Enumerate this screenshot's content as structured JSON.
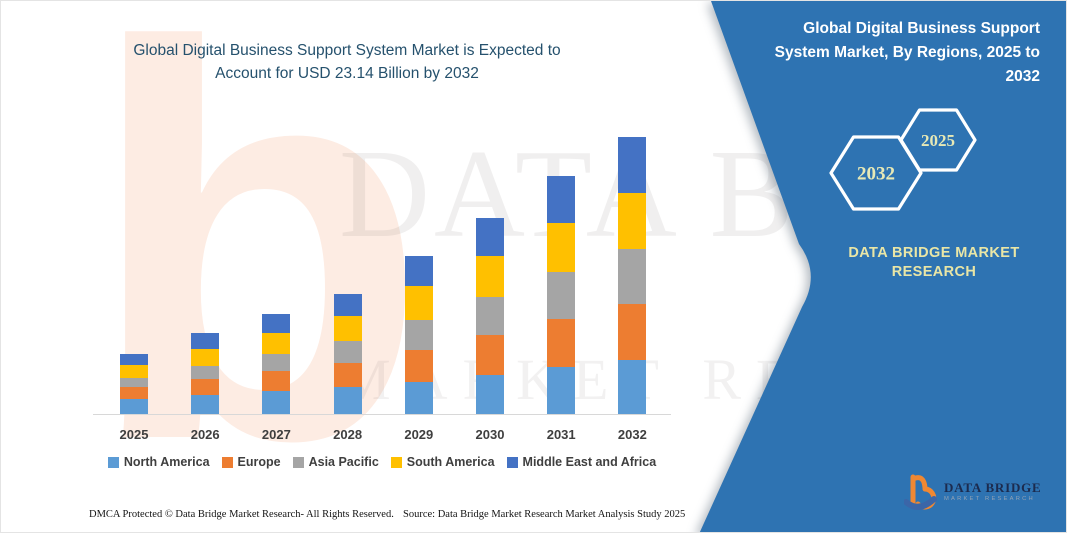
{
  "header": {
    "title_line1": "Global Digital Business Support System Market is Expected to",
    "title_line2": "Account for USD 23.14 Billion by 2032"
  },
  "side_panel": {
    "title": "Global Digital Business Support System Market, By Regions, 2025 to 2032",
    "background_color": "#2E73B2",
    "hexagons": [
      {
        "label": "2032"
      },
      {
        "label": "2025"
      }
    ],
    "hexagon_label_color": "#e7e9b6",
    "brand_text": "DATA BRIDGE MARKET RESEARCH",
    "logo": {
      "name": "DATA BRIDGE",
      "tagline": "MARKET RESEARCH"
    }
  },
  "watermarks": {
    "big_letter": "b",
    "line1": "DATA BRIDGE",
    "line2": "MARKET RESEARCH"
  },
  "chart_data": {
    "type": "bar",
    "stacked": true,
    "title": "Global Digital Business Support System Market is Expected to Account for USD 23.14 Billion by 2032",
    "unit": "USD Billion",
    "categories": [
      "2025",
      "2026",
      "2027",
      "2028",
      "2029",
      "2030",
      "2031",
      "2032"
    ],
    "series": [
      {
        "name": "North America",
        "color": "#5B9BD5",
        "values": [
          1.22,
          1.55,
          1.9,
          2.24,
          2.65,
          3.28,
          3.9,
          4.52
        ]
      },
      {
        "name": "Europe",
        "color": "#ED7D31",
        "values": [
          0.99,
          1.32,
          1.66,
          2.0,
          2.7,
          3.33,
          4.0,
          4.66
        ]
      },
      {
        "name": "Asia Pacific",
        "color": "#A5A5A5",
        "values": [
          0.76,
          1.08,
          1.45,
          1.83,
          2.51,
          3.2,
          3.9,
          4.6
        ]
      },
      {
        "name": "South America",
        "color": "#FFC000",
        "values": [
          1.08,
          1.4,
          1.75,
          2.1,
          2.82,
          3.45,
          4.08,
          4.71
        ]
      },
      {
        "name": "Middle East and Africa",
        "color": "#4472C4",
        "values": [
          0.96,
          1.33,
          1.59,
          1.85,
          2.52,
          3.2,
          3.92,
          4.65
        ]
      }
    ],
    "totals": [
      5.01,
      6.68,
      8.35,
      10.02,
      13.2,
      16.46,
      19.8,
      23.14
    ],
    "ylim": [
      0,
      25
    ],
    "gridlines": false,
    "y_axis_visible": false,
    "legend_position": "bottom"
  },
  "footer": {
    "dmca": "DMCA Protected © Data Bridge Market Research- All Rights Reserved.",
    "source": "Source: Data Bridge Market Research Market Analysis Study 2025"
  }
}
